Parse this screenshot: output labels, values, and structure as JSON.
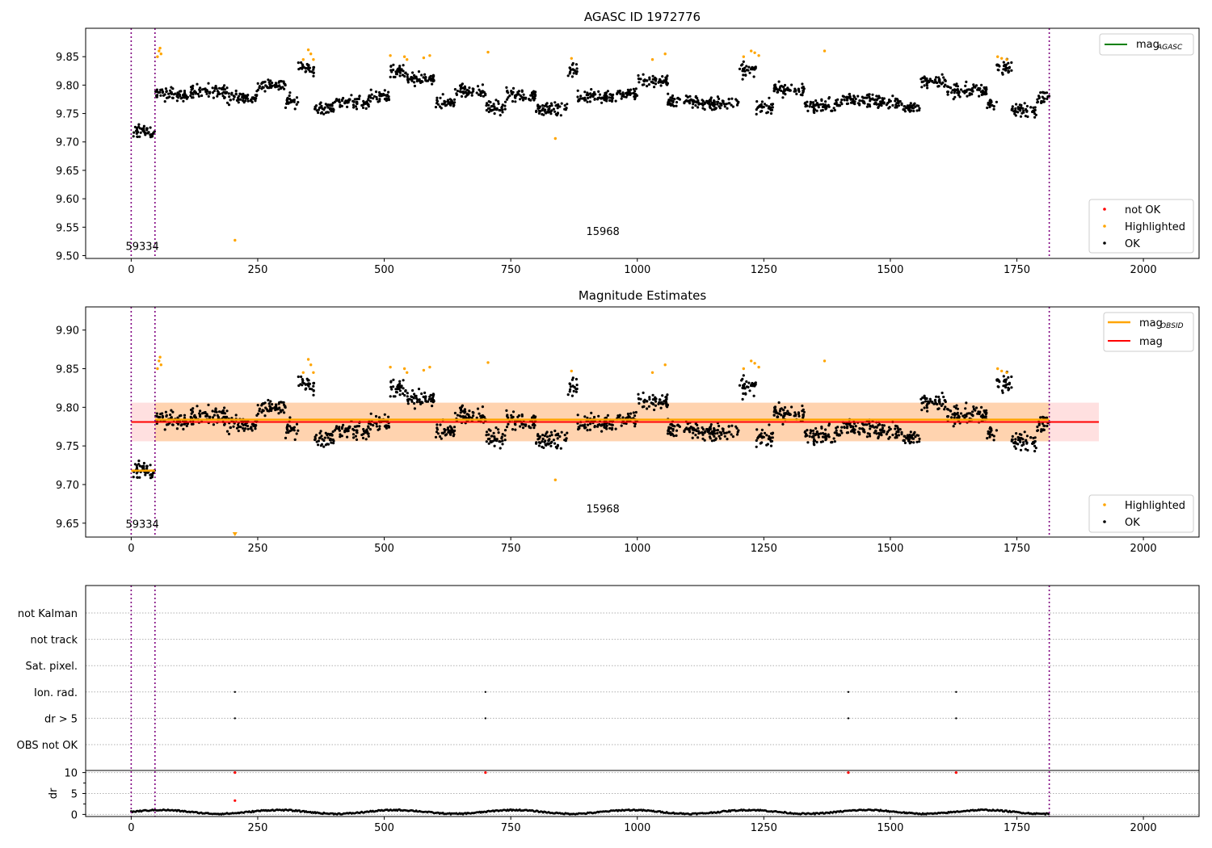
{
  "chart_data": [
    {
      "type": "scatter",
      "title": "AGASC ID 1972776",
      "xlim": [
        -90,
        2110
      ],
      "ylim": [
        9.495,
        9.9
      ],
      "xticks": [
        0,
        250,
        500,
        750,
        1000,
        1250,
        1500,
        1750,
        2000
      ],
      "yticks": [
        9.5,
        9.55,
        9.6,
        9.65,
        9.7,
        9.75,
        9.8,
        9.85
      ],
      "vlines": [
        0,
        47,
        1814
      ],
      "annotations": [
        {
          "text": "59334",
          "x": 22,
          "y": 9.51
        },
        {
          "text": "15968",
          "x": 932,
          "y": 9.536
        }
      ],
      "series": [
        {
          "name": "mag",
          "sub": "AGASC",
          "kind": "line",
          "color": "#008000"
        },
        {
          "name": "not OK",
          "kind": "points",
          "color": "#ff0000"
        },
        {
          "name": "Highlighted",
          "kind": "points",
          "color": "#ffa500"
        },
        {
          "name": "OK",
          "kind": "points",
          "color": "#000000"
        }
      ],
      "segments": [
        [
          0,
          47,
          9.718
        ],
        [
          48,
          120,
          9.784
        ],
        [
          120,
          190,
          9.79
        ],
        [
          190,
          250,
          9.778
        ],
        [
          250,
          305,
          9.8
        ],
        [
          305,
          330,
          9.772
        ],
        [
          330,
          362,
          9.83
        ],
        [
          362,
          405,
          9.76
        ],
        [
          405,
          470,
          9.77
        ],
        [
          470,
          510,
          9.78
        ],
        [
          510,
          545,
          9.822
        ],
        [
          545,
          600,
          9.81
        ],
        [
          600,
          640,
          9.77
        ],
        [
          640,
          700,
          9.79
        ],
        [
          700,
          740,
          9.76
        ],
        [
          740,
          800,
          9.782
        ],
        [
          800,
          862,
          9.758
        ],
        [
          862,
          882,
          9.828
        ],
        [
          882,
          960,
          9.78
        ],
        [
          960,
          1000,
          9.785
        ],
        [
          1000,
          1060,
          9.808
        ],
        [
          1060,
          1125,
          9.772
        ],
        [
          1125,
          1200,
          9.768
        ],
        [
          1200,
          1235,
          9.825
        ],
        [
          1235,
          1270,
          9.762
        ],
        [
          1270,
          1330,
          9.792
        ],
        [
          1330,
          1405,
          9.765
        ],
        [
          1405,
          1470,
          9.775
        ],
        [
          1470,
          1520,
          9.77
        ],
        [
          1520,
          1560,
          9.76
        ],
        [
          1560,
          1610,
          9.805
        ],
        [
          1610,
          1690,
          9.79
        ],
        [
          1690,
          1710,
          9.765
        ],
        [
          1710,
          1740,
          9.83
        ],
        [
          1740,
          1790,
          9.757
        ],
        [
          1790,
          1814,
          9.778
        ]
      ],
      "highlighted": [
        {
          "x": 52,
          "y": 9.85
        },
        {
          "x": 55,
          "y": 9.86
        },
        {
          "x": 57,
          "y": 9.865
        },
        {
          "x": 59,
          "y": 9.855
        },
        {
          "x": 340,
          "y": 9.845
        },
        {
          "x": 350,
          "y": 9.862
        },
        {
          "x": 355,
          "y": 9.855
        },
        {
          "x": 360,
          "y": 9.845
        },
        {
          "x": 512,
          "y": 9.852
        },
        {
          "x": 540,
          "y": 9.85
        },
        {
          "x": 545,
          "y": 9.845
        },
        {
          "x": 578,
          "y": 9.848
        },
        {
          "x": 590,
          "y": 9.852
        },
        {
          "x": 705,
          "y": 9.858
        },
        {
          "x": 870,
          "y": 9.847
        },
        {
          "x": 1030,
          "y": 9.845
        },
        {
          "x": 1055,
          "y": 9.855
        },
        {
          "x": 1210,
          "y": 9.85
        },
        {
          "x": 1225,
          "y": 9.86
        },
        {
          "x": 1232,
          "y": 9.857
        },
        {
          "x": 1240,
          "y": 9.852
        },
        {
          "x": 1370,
          "y": 9.86
        },
        {
          "x": 1712,
          "y": 9.85
        },
        {
          "x": 1720,
          "y": 9.847
        },
        {
          "x": 1730,
          "y": 9.845
        },
        {
          "x": 838,
          "y": 9.706
        },
        {
          "x": 205,
          "y": 9.527
        }
      ]
    },
    {
      "type": "scatter",
      "title": "Magnitude Estimates",
      "xlim": [
        -90,
        2110
      ],
      "ylim": [
        9.632,
        9.93
      ],
      "xticks": [
        0,
        250,
        500,
        750,
        1000,
        1250,
        1500,
        1750,
        2000
      ],
      "yticks": [
        9.65,
        9.7,
        9.75,
        9.8,
        9.85,
        9.9
      ],
      "vlines": [
        0,
        47,
        1814
      ],
      "mag": {
        "value": 9.781,
        "band": [
          9.756,
          9.806
        ],
        "xrange": [
          0,
          1912
        ]
      },
      "mag_obsid": [
        {
          "x0": 0,
          "x1": 47,
          "y": 9.718,
          "band": [
            9.716,
            9.72
          ]
        },
        {
          "x0": 47,
          "x1": 1814,
          "y": 9.784,
          "band": [
            9.756,
            9.806
          ]
        }
      ],
      "annotations": [
        {
          "text": "59334",
          "x": 22,
          "y": 9.644
        },
        {
          "text": "15968",
          "x": 932,
          "y": 9.664
        }
      ],
      "series": [
        {
          "name": "mag",
          "sub": "OBSID",
          "kind": "line",
          "color": "#ffa500"
        },
        {
          "name": "mag",
          "kind": "line",
          "color": "#ff0000"
        },
        {
          "name": "Highlighted",
          "kind": "points",
          "color": "#ffa500"
        },
        {
          "name": "OK",
          "kind": "points",
          "color": "#000000"
        }
      ]
    },
    {
      "type": "scatter",
      "title": "",
      "xlim": [
        -90,
        2110
      ],
      "categories": [
        "not Kalman",
        "not track",
        "Sat. pixel.",
        "Ion. rad.",
        "dr > 5",
        "OBS not OK"
      ],
      "flags": {
        "Ion. rad.": [
          205,
          700,
          1417,
          1630
        ],
        "dr > 5": [
          205,
          700,
          1417,
          1630
        ]
      },
      "dr": {
        "ylabel": "dr",
        "yticks": [
          0,
          5,
          10
        ],
        "ylim": [
          -0.5,
          10.5
        ],
        "outliers": [
          {
            "x": 205,
            "y": 10
          },
          {
            "x": 700,
            "y": 10
          },
          {
            "x": 1417,
            "y": 10
          },
          {
            "x": 1630,
            "y": 10
          },
          {
            "x": 205,
            "y": 3.3
          }
        ],
        "baseline": 0.6
      },
      "xticks": [
        0,
        250,
        500,
        750,
        1000,
        1250,
        1500,
        1750,
        2000
      ],
      "vlines": [
        0,
        47,
        1814
      ]
    }
  ]
}
